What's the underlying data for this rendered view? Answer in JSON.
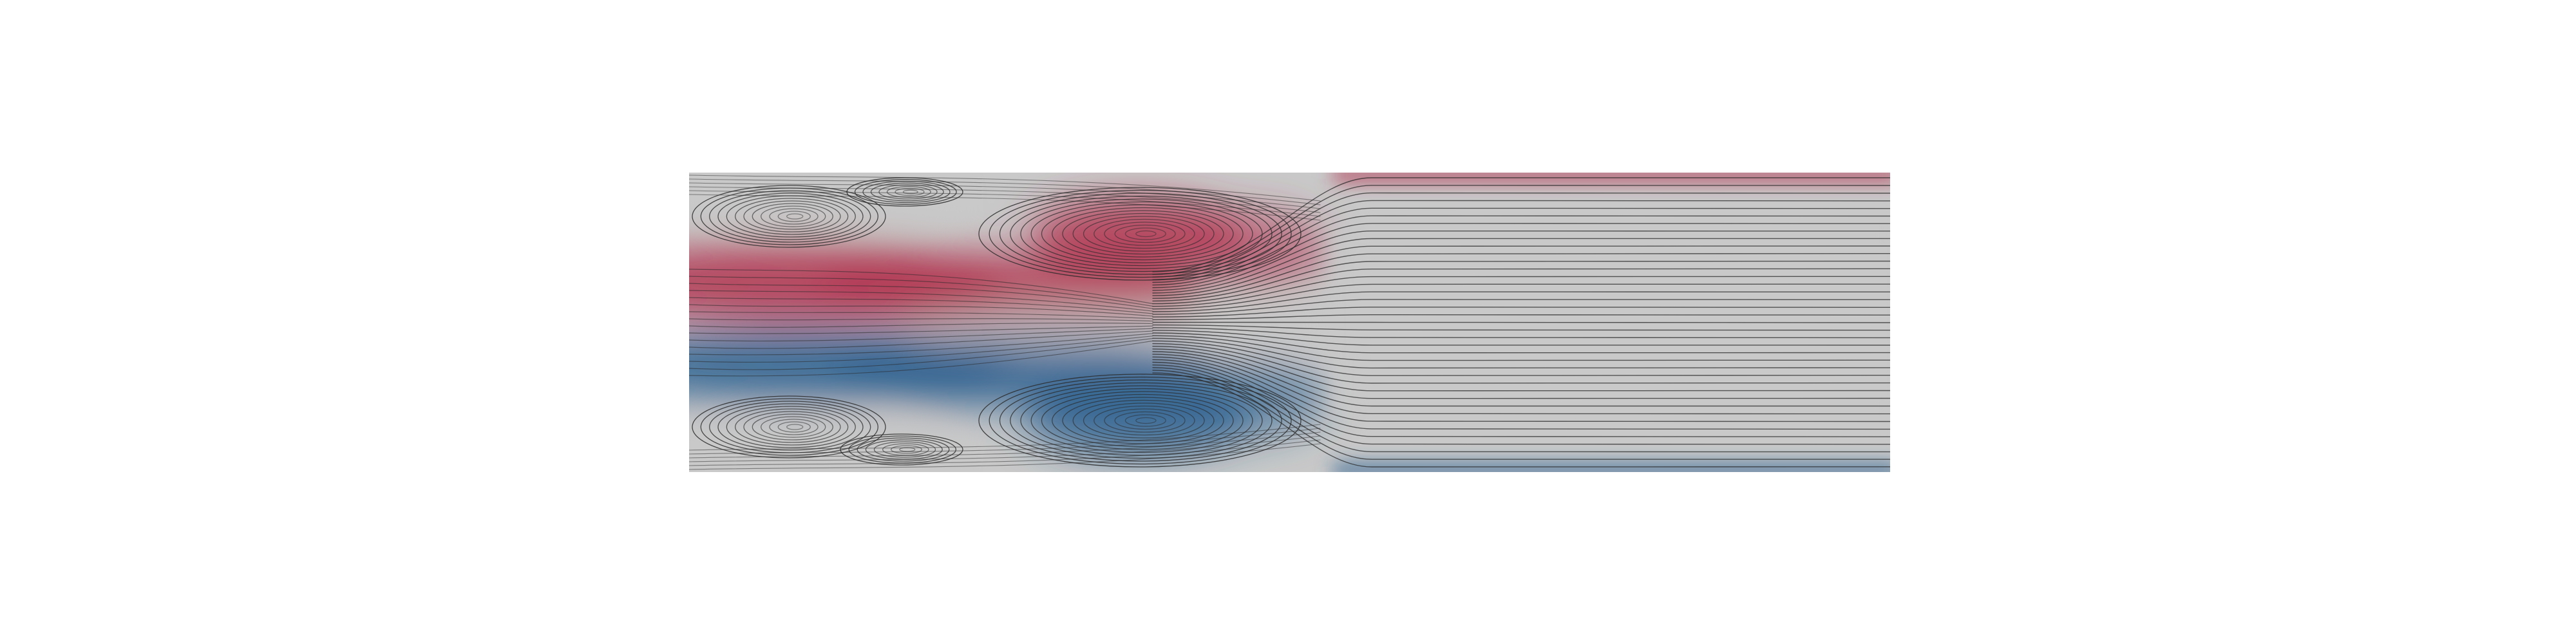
{
  "figure": {
    "kind": "streamline-visualization",
    "colormap": {
      "positive": "#b2324f",
      "neutral": "#c9c9c9",
      "negative": "#2a5f8f",
      "streamline": "#2a2a2a"
    }
  }
}
